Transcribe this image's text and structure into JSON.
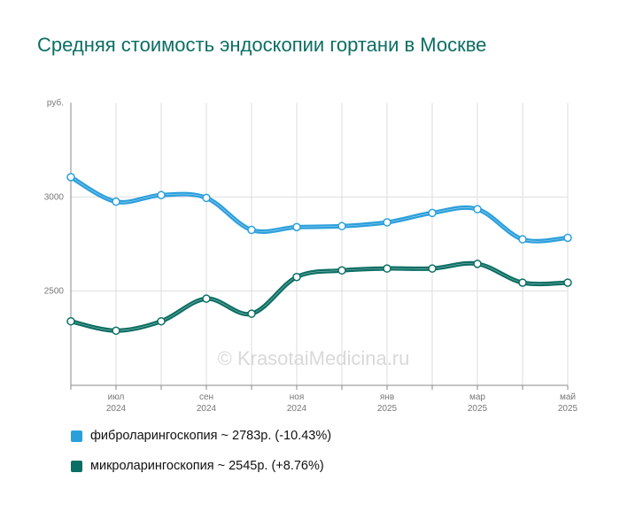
{
  "title": "Средняя стоимость эндоскопии гортани в Москве",
  "watermark": "© KrasotaiMedicina.ru",
  "chart_data": {
    "type": "line",
    "y_unit": "руб.",
    "ylim": [
      2000,
      3500
    ],
    "yticks": [
      2500,
      3000
    ],
    "x": [
      "2024-06",
      "2024-07",
      "2024-08",
      "2024-09",
      "2024-10",
      "2024-11",
      "2024-12",
      "2025-01",
      "2025-02",
      "2025-03",
      "2025-04",
      "2025-05"
    ],
    "xtick_labels": [
      {
        "month": "июл",
        "year": "2024"
      },
      {
        "month": "сен",
        "year": "2024"
      },
      {
        "month": "ноя",
        "year": "2024"
      },
      {
        "month": "янв",
        "year": "2025"
      },
      {
        "month": "мар",
        "year": "2025"
      },
      {
        "month": "май",
        "year": "2025"
      }
    ],
    "grid": true,
    "legend_position": "bottom-left",
    "series": [
      {
        "name": "фиброларингоскопия",
        "legend_label": "фиброларингоскопия ~ 2783р. (-10.43%)",
        "color": "#2b9fdc",
        "values": [
          3105,
          2975,
          3010,
          2995,
          2825,
          2840,
          2845,
          2865,
          2915,
          2935,
          2775,
          2783
        ]
      },
      {
        "name": "микроларингоскопия",
        "legend_label": "микроларингоскопия ~ 2545р. (+8.76%)",
        "color": "#0b6e63",
        "values": [
          2340,
          2290,
          2340,
          2460,
          2380,
          2575,
          2610,
          2620,
          2620,
          2645,
          2545,
          2545
        ]
      }
    ]
  }
}
